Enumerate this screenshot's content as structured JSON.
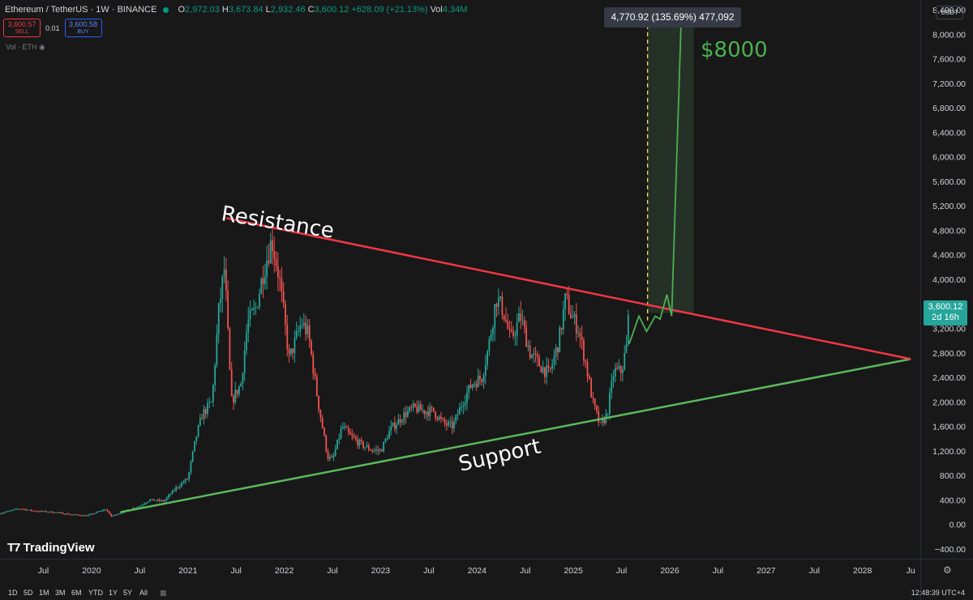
{
  "legend": {
    "symbol": "Ethereum / TetherUS · 1W · BINANCE",
    "open_label": "O",
    "open": "2,972.03",
    "high_label": "H",
    "high": "3,673.84",
    "low_label": "L",
    "low": "2,932.46",
    "close_label": "C",
    "close": "3,600.12",
    "change": "+628.09 (+21.13%)",
    "vol_label": "Vol",
    "vol": "4.34M",
    "sell_price": "3,600.57",
    "sell_label": "SELL",
    "spread": "0.01",
    "buy_price": "3,600.58",
    "buy_label": "BUY",
    "volume_study": "Vol · ETH"
  },
  "currency": "USDT",
  "measure_box": "4,770.92 (135.69%) 477,092",
  "price_tag": {
    "price": "3,600.12",
    "countdown": "2d 16h"
  },
  "brand": "TradingView",
  "toolbar": {
    "timeframes": [
      "1D",
      "5D",
      "1M",
      "3M",
      "6M",
      "YTD",
      "1Y",
      "5Y",
      "All"
    ],
    "clock": "12:48:39 UTC+4"
  },
  "colors": {
    "up": "#26a69a",
    "down": "#ef5350",
    "support": "#5cb85c",
    "resistance": "#f23645",
    "target": "#4caf50"
  },
  "chart_data": {
    "type": "candlestick",
    "title": "",
    "y_ticks": [
      8400,
      8000,
      7600,
      7200,
      6800,
      6400,
      6000,
      5600,
      5200,
      4800,
      4400,
      4000,
      3600,
      3200,
      2800,
      2400,
      2000,
      1600,
      1200,
      800,
      400,
      0,
      -400
    ],
    "y_tick_labels": [
      "8,400.00",
      "8,000.00",
      "7,600.00",
      "7,200.00",
      "6,800.00",
      "6,400.00",
      "6,000.00",
      "5,600.00",
      "5,200.00",
      "4,800.00",
      "4,400.00",
      "4,000.00",
      "",
      "3,200.00",
      "2,800.00",
      "2,400.00",
      "2,000.00",
      "1,600.00",
      "1,200.00",
      "800.00",
      "400.00",
      "0.00",
      "−400.00"
    ],
    "ylim": [
      -560,
      8560
    ],
    "x_ticks": [
      {
        "t": 2019.5,
        "label": "Jul"
      },
      {
        "t": 2020.0,
        "label": "2020"
      },
      {
        "t": 2020.5,
        "label": "Jul"
      },
      {
        "t": 2021.0,
        "label": "2021"
      },
      {
        "t": 2021.5,
        "label": "Jul"
      },
      {
        "t": 2022.0,
        "label": "2022"
      },
      {
        "t": 2022.5,
        "label": "Jul"
      },
      {
        "t": 2023.0,
        "label": "2023"
      },
      {
        "t": 2023.5,
        "label": "Jul"
      },
      {
        "t": 2024.0,
        "label": "2024"
      },
      {
        "t": 2024.5,
        "label": "Jul"
      },
      {
        "t": 2025.0,
        "label": "2025"
      },
      {
        "t": 2025.5,
        "label": "Jul"
      },
      {
        "t": 2026.0,
        "label": "2026"
      },
      {
        "t": 2026.5,
        "label": "Jul"
      },
      {
        "t": 2027.0,
        "label": "2027"
      },
      {
        "t": 2027.5,
        "label": "Jul"
      },
      {
        "t": 2028.0,
        "label": "2028"
      },
      {
        "t": 2028.5,
        "label": "Ju"
      }
    ],
    "xlim": [
      2019.05,
      2028.6
    ],
    "price_path": [
      [
        2019.05,
        180
      ],
      [
        2019.25,
        260
      ],
      [
        2019.4,
        220
      ],
      [
        2019.6,
        200
      ],
      [
        2019.8,
        160
      ],
      [
        2019.95,
        140
      ],
      [
        2020.15,
        250
      ],
      [
        2020.2,
        130
      ],
      [
        2020.35,
        220
      ],
      [
        2020.5,
        300
      ],
      [
        2020.6,
        400
      ],
      [
        2020.75,
        380
      ],
      [
        2020.88,
        600
      ],
      [
        2021.0,
        750
      ],
      [
        2021.08,
        1400
      ],
      [
        2021.15,
        1800
      ],
      [
        2021.25,
        2000
      ],
      [
        2021.32,
        3500
      ],
      [
        2021.38,
        4200
      ],
      [
        2021.45,
        2000
      ],
      [
        2021.55,
        2300
      ],
      [
        2021.62,
        3300
      ],
      [
        2021.7,
        3500
      ],
      [
        2021.78,
        4100
      ],
      [
        2021.87,
        4650
      ],
      [
        2021.95,
        4000
      ],
      [
        2022.05,
        2700
      ],
      [
        2022.18,
        3300
      ],
      [
        2022.25,
        3100
      ],
      [
        2022.35,
        2000
      ],
      [
        2022.45,
        1100
      ],
      [
        2022.5,
        1050
      ],
      [
        2022.6,
        1600
      ],
      [
        2022.68,
        1450
      ],
      [
        2022.8,
        1300
      ],
      [
        2022.9,
        1220
      ],
      [
        2023.0,
        1200
      ],
      [
        2023.1,
        1550
      ],
      [
        2023.25,
        1800
      ],
      [
        2023.35,
        1900
      ],
      [
        2023.45,
        1850
      ],
      [
        2023.55,
        1850
      ],
      [
        2023.65,
        1650
      ],
      [
        2023.75,
        1600
      ],
      [
        2023.85,
        2000
      ],
      [
        2023.95,
        2300
      ],
      [
        2024.05,
        2400
      ],
      [
        2024.12,
        2900
      ],
      [
        2024.2,
        3700
      ],
      [
        2024.27,
        3500
      ],
      [
        2024.35,
        3000
      ],
      [
        2024.45,
        3400
      ],
      [
        2024.55,
        2800
      ],
      [
        2024.65,
        2600
      ],
      [
        2024.75,
        2450
      ],
      [
        2024.85,
        3000
      ],
      [
        2024.92,
        3700
      ],
      [
        2024.98,
        3400
      ],
      [
        2025.05,
        3200
      ],
      [
        2025.12,
        2700
      ],
      [
        2025.2,
        2000
      ],
      [
        2025.28,
        1600
      ],
      [
        2025.35,
        1800
      ],
      [
        2025.42,
        2500
      ],
      [
        2025.5,
        2500
      ],
      [
        2025.55,
        2900
      ],
      [
        2025.58,
        3600
      ]
    ],
    "projection_path": [
      [
        2025.58,
        2950
      ],
      [
        2025.68,
        3400
      ],
      [
        2025.76,
        3150
      ],
      [
        2025.85,
        3400
      ],
      [
        2025.9,
        3350
      ],
      [
        2025.97,
        3750
      ],
      [
        2026.02,
        3400
      ],
      [
        2026.12,
        8300
      ]
    ],
    "support_line": [
      [
        2020.3,
        200
      ],
      [
        2028.5,
        2700
      ]
    ],
    "resistance_line": [
      [
        2021.4,
        5000
      ],
      [
        2028.5,
        2700
      ]
    ],
    "target_zone": {
      "t_start": 2025.77,
      "t_end": 2026.25,
      "y_low": 3450,
      "y_high": 8390
    },
    "dashed_marker_t": 2025.77,
    "annotations": {
      "resistance": "Resistance",
      "support": "Support",
      "target": "$8000"
    }
  }
}
